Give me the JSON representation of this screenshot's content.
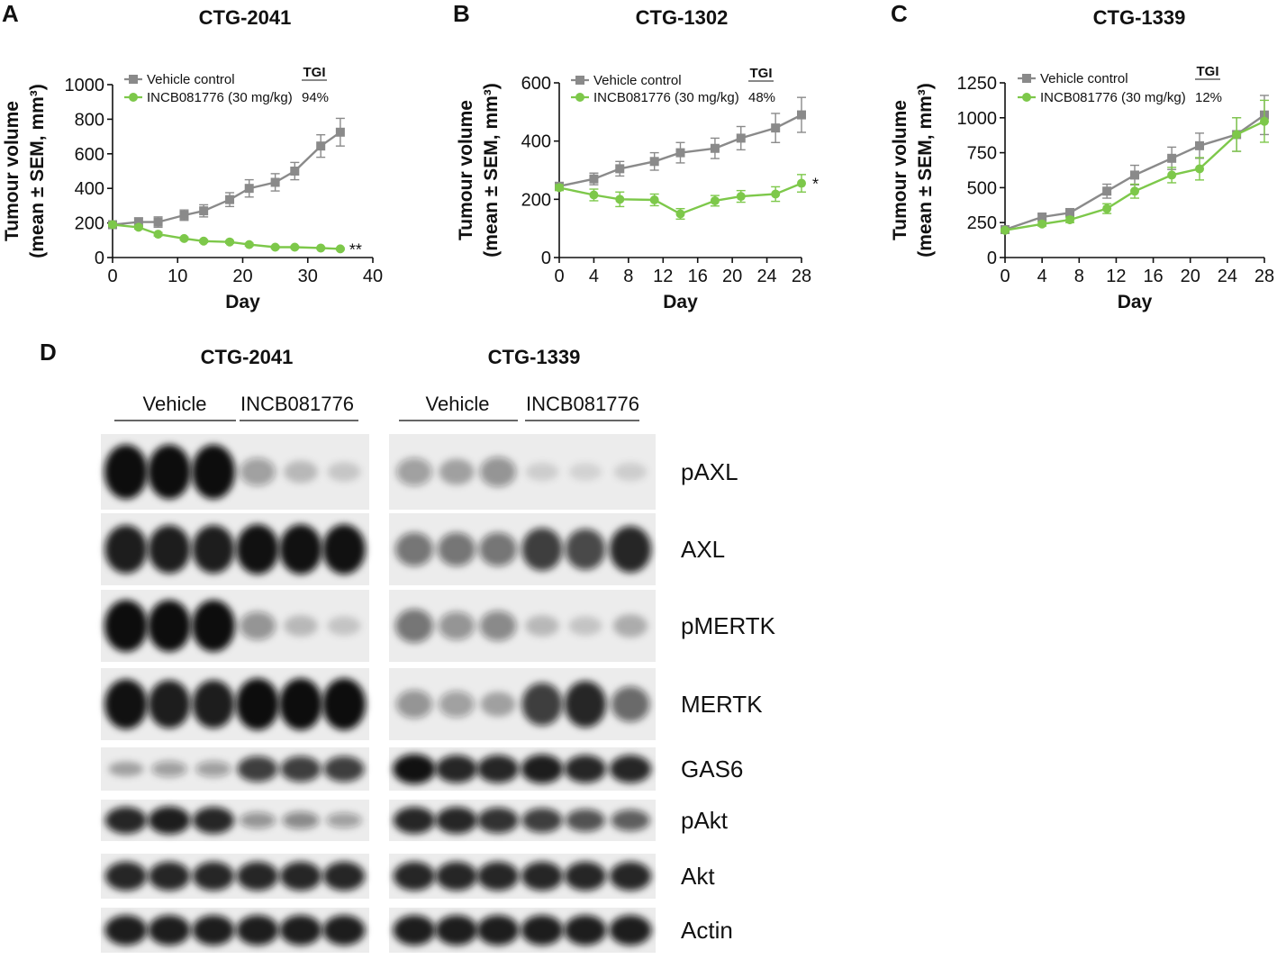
{
  "colors": {
    "vehicle": "#8a8a8a",
    "drug": "#7dc84a",
    "axis": "#111111",
    "blot_bg": "#ececec",
    "band": "#111111"
  },
  "chart_data": [
    {
      "type": "line",
      "panel": "A",
      "title": "CTG-2041",
      "xlabel": "Day",
      "ylabel_1": "Tumour volume",
      "ylabel_2": "(mean ± SEM, mm³)",
      "xlim": [
        0,
        40
      ],
      "ylim": [
        0,
        1000
      ],
      "xticks": [
        0,
        10,
        20,
        30,
        40
      ],
      "yticks": [
        0,
        200,
        400,
        600,
        800,
        1000
      ],
      "legend_header": "TGI",
      "series": [
        {
          "name": "Vehicle control",
          "marker": "square",
          "tgi": "",
          "x": [
            0,
            4,
            7,
            11,
            14,
            18,
            21,
            25,
            28,
            32,
            35
          ],
          "y": [
            190,
            205,
            205,
            245,
            270,
            335,
            400,
            435,
            500,
            645,
            725
          ],
          "err": [
            15,
            25,
            30,
            30,
            35,
            40,
            50,
            50,
            50,
            65,
            80
          ]
        },
        {
          "name": "INCB081776 (30 mg/kg)",
          "marker": "circle",
          "tgi": "94%",
          "x": [
            0,
            4,
            7,
            11,
            14,
            18,
            21,
            25,
            28,
            32,
            35
          ],
          "y": [
            190,
            175,
            135,
            110,
            95,
            90,
            75,
            60,
            60,
            55,
            50
          ],
          "err": [
            10,
            10,
            10,
            8,
            8,
            8,
            8,
            6,
            6,
            5,
            5
          ],
          "annotation": "**"
        }
      ]
    },
    {
      "type": "line",
      "panel": "B",
      "title": "CTG-1302",
      "xlabel": "Day",
      "ylabel_1": "Tumour volume",
      "ylabel_2": "(mean ± SEM, mm³)",
      "xlim": [
        0,
        28
      ],
      "ylim": [
        0,
        600
      ],
      "xticks": [
        0,
        4,
        8,
        12,
        16,
        20,
        24,
        28
      ],
      "yticks": [
        0,
        200,
        400,
        600
      ],
      "legend_header": "TGI",
      "series": [
        {
          "name": "Vehicle control",
          "marker": "square",
          "tgi": "",
          "x": [
            0,
            4,
            7,
            11,
            14,
            18,
            21,
            25,
            28
          ],
          "y": [
            245,
            270,
            305,
            330,
            360,
            375,
            410,
            445,
            490
          ],
          "err": [
            10,
            20,
            25,
            30,
            35,
            35,
            40,
            50,
            60
          ]
        },
        {
          "name": "INCB081776 (30 mg/kg)",
          "marker": "circle",
          "tgi": "48%",
          "x": [
            0,
            4,
            7,
            11,
            14,
            18,
            21,
            25,
            28
          ],
          "y": [
            240,
            215,
            200,
            198,
            150,
            195,
            210,
            218,
            255
          ],
          "err": [
            10,
            20,
            25,
            20,
            18,
            18,
            20,
            25,
            30
          ],
          "annotation": "*"
        }
      ]
    },
    {
      "type": "line",
      "panel": "C",
      "title": "CTG-1339",
      "xlabel": "Day",
      "ylabel_1": "Tumour volume",
      "ylabel_2": "(mean ± SEM, mm³)",
      "xlim": [
        0,
        28
      ],
      "ylim": [
        0,
        1250
      ],
      "xticks": [
        0,
        4,
        8,
        12,
        16,
        20,
        24,
        28
      ],
      "yticks": [
        0,
        250,
        500,
        750,
        1000,
        1250
      ],
      "legend_header": "TGI",
      "series": [
        {
          "name": "Vehicle control",
          "marker": "square",
          "tgi": "",
          "x": [
            0,
            4,
            7,
            11,
            14,
            18,
            21,
            25,
            28
          ],
          "y": [
            200,
            290,
            320,
            475,
            590,
            710,
            800,
            880,
            1020
          ],
          "err": [
            15,
            20,
            30,
            50,
            70,
            80,
            90,
            120,
            140
          ]
        },
        {
          "name": "INCB081776 (30 mg/kg)",
          "marker": "circle",
          "tgi": "12%",
          "x": [
            0,
            4,
            7,
            11,
            14,
            18,
            21,
            25,
            28
          ],
          "y": [
            195,
            240,
            270,
            350,
            475,
            590,
            635,
            880,
            975
          ],
          "err": [
            10,
            15,
            20,
            35,
            50,
            55,
            80,
            120,
            150
          ]
        }
      ]
    }
  ],
  "blot": {
    "panel": "D",
    "groups": [
      {
        "title": "CTG-2041",
        "vehicle_label": "Vehicle",
        "drug_label": "INCB081776"
      },
      {
        "title": "CTG-1339",
        "vehicle_label": "Vehicle",
        "drug_label": "INCB081776"
      }
    ],
    "rows": [
      {
        "label": "pAXL",
        "intensity": [
          [
            1,
            1,
            1,
            0.3,
            0.15,
            0.08
          ],
          [
            0.3,
            0.25,
            0.35,
            0.05,
            0.03,
            0.05
          ]
        ]
      },
      {
        "label": "AXL",
        "intensity": [
          [
            0.9,
            0.9,
            0.9,
            0.95,
            0.95,
            0.95
          ],
          [
            0.5,
            0.5,
            0.5,
            0.75,
            0.7,
            0.85
          ]
        ]
      },
      {
        "label": "pMERTK",
        "intensity": [
          [
            1,
            1,
            1,
            0.35,
            0.15,
            0.1
          ],
          [
            0.5,
            0.35,
            0.4,
            0.15,
            0.1,
            0.2
          ]
        ]
      },
      {
        "label": "MERTK",
        "intensity": [
          [
            0.95,
            0.9,
            0.9,
            1,
            1,
            1
          ],
          [
            0.35,
            0.3,
            0.25,
            0.75,
            0.85,
            0.55
          ]
        ]
      },
      {
        "label": "GAS6",
        "intensity": [
          [
            0.25,
            0.3,
            0.3,
            0.75,
            0.75,
            0.75
          ],
          [
            0.95,
            0.85,
            0.85,
            0.9,
            0.85,
            0.85
          ]
        ]
      },
      {
        "label": "pAkt",
        "intensity": [
          [
            0.85,
            0.9,
            0.85,
            0.35,
            0.4,
            0.3
          ],
          [
            0.85,
            0.85,
            0.8,
            0.75,
            0.65,
            0.6
          ]
        ]
      },
      {
        "label": "Akt",
        "intensity": [
          [
            0.85,
            0.85,
            0.85,
            0.85,
            0.85,
            0.85
          ],
          [
            0.85,
            0.85,
            0.85,
            0.85,
            0.85,
            0.85
          ]
        ]
      },
      {
        "label": "Actin",
        "intensity": [
          [
            0.9,
            0.9,
            0.9,
            0.9,
            0.9,
            0.9
          ],
          [
            0.9,
            0.9,
            0.9,
            0.9,
            0.9,
            0.9
          ]
        ]
      }
    ]
  }
}
